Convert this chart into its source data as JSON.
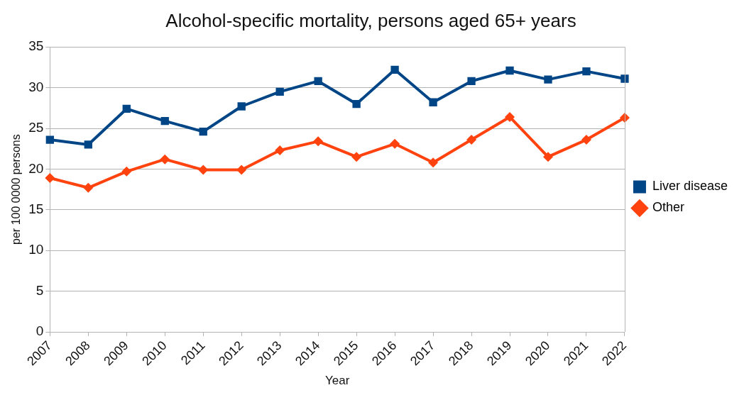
{
  "chart_data": {
    "type": "line",
    "title": "Alcohol-specific mortality, persons aged 65+ years",
    "xlabel": "Year",
    "ylabel": "per 100 0000 persons",
    "categories": [
      "2007",
      "2008",
      "2009",
      "2010",
      "2011",
      "2012",
      "2013",
      "2014",
      "2015",
      "2016",
      "2017",
      "2018",
      "2019",
      "2020",
      "2021",
      "2022"
    ],
    "series": [
      {
        "name": "Liver disease",
        "color": "#004586",
        "marker": "square",
        "values": [
          23.6,
          23.0,
          27.4,
          25.9,
          24.6,
          27.7,
          29.5,
          30.8,
          28.0,
          32.2,
          28.2,
          30.8,
          32.1,
          31.0,
          32.0,
          31.1
        ]
      },
      {
        "name": "Other",
        "color": "#ff420e",
        "marker": "diamond",
        "values": [
          18.9,
          17.7,
          19.7,
          21.2,
          19.9,
          19.9,
          22.3,
          23.4,
          21.5,
          23.1,
          20.8,
          23.6,
          26.4,
          21.5,
          23.6,
          26.3
        ]
      }
    ],
    "ylim": [
      0,
      35
    ],
    "yticks": [
      0,
      5,
      10,
      15,
      20,
      25,
      30,
      35
    ],
    "grid": "y",
    "legend": "right",
    "line_style": "solid"
  }
}
